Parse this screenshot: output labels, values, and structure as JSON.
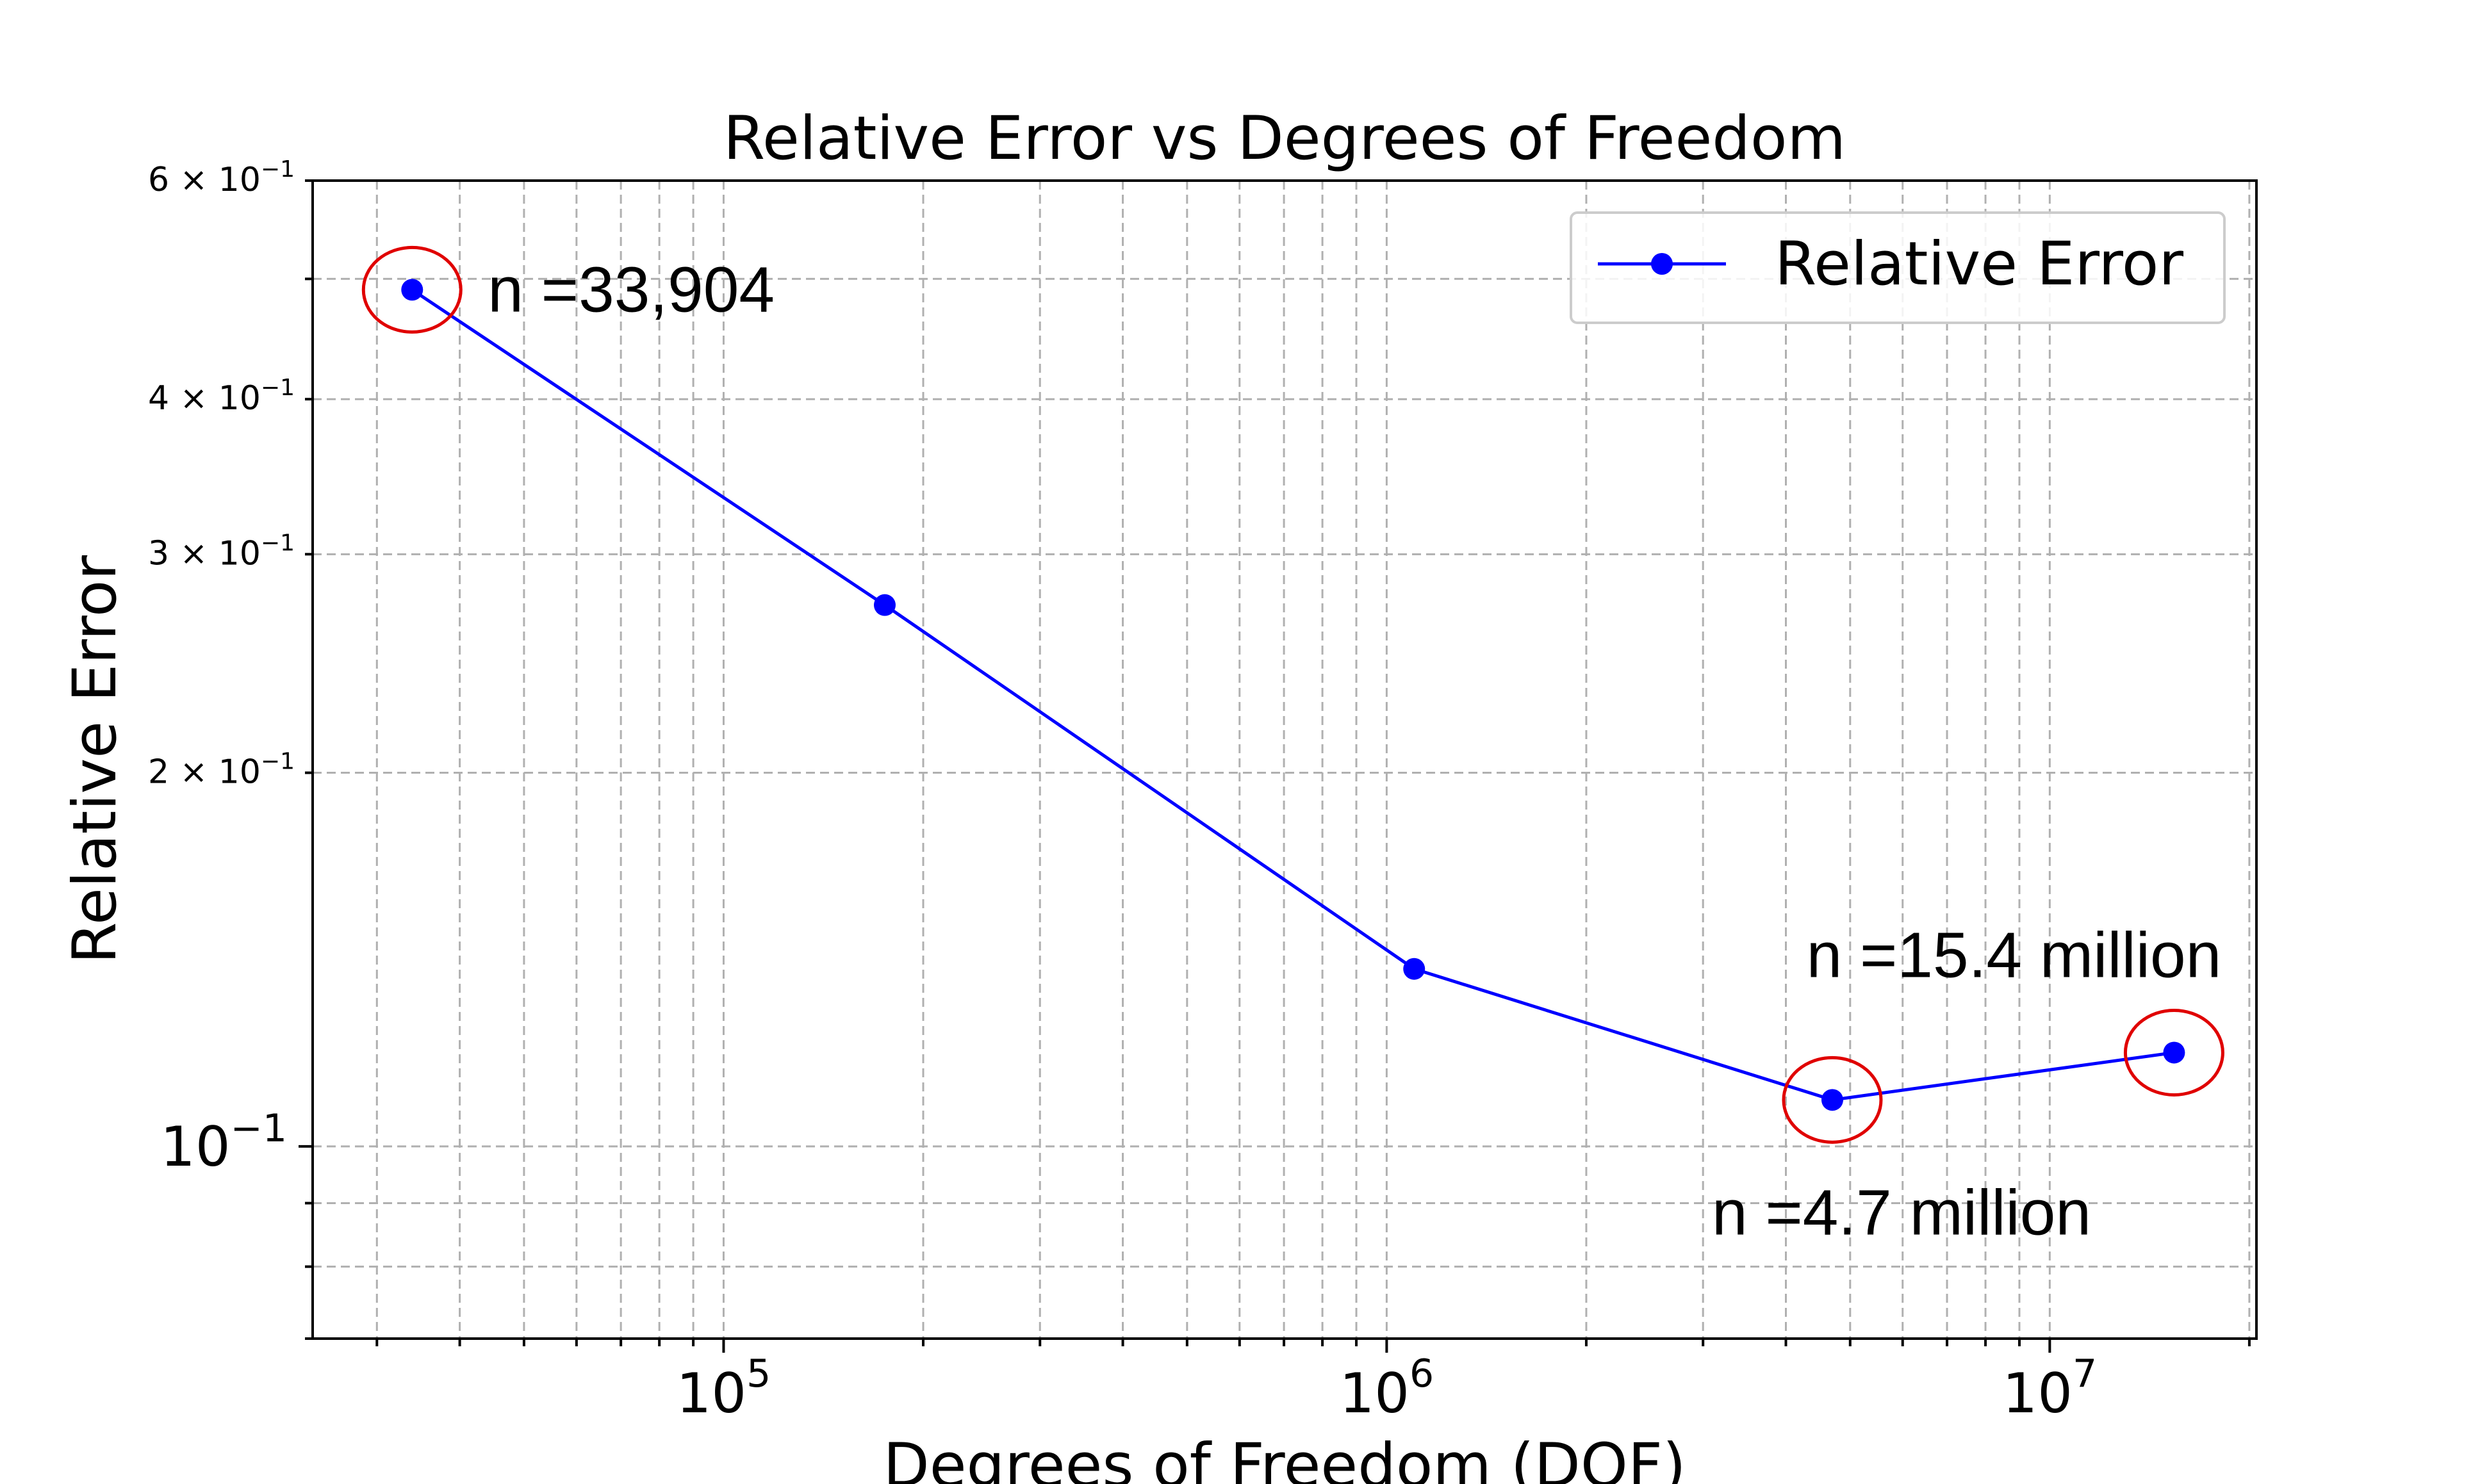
{
  "chart_data": {
    "type": "line",
    "title": "Relative Error vs Degrees of Freedom",
    "xlabel": "Degrees of Freedom (DOF)",
    "ylabel": "Relative Error",
    "xscale": "log",
    "yscale": "log",
    "xlim": [
      24000,
      20500000
    ],
    "ylim": [
      0.07,
      0.6
    ],
    "grid": true,
    "legend_position": "top-right",
    "x_ticks": [
      {
        "base": "10",
        "exp": "5",
        "value": 100000
      },
      {
        "base": "10",
        "exp": "6",
        "value": 1000000
      },
      {
        "base": "10",
        "exp": "7",
        "value": 10000000
      }
    ],
    "y_ticks": [
      {
        "mant": "6 × ",
        "base": "10",
        "exp": "−1",
        "value": 0.6,
        "minor": true
      },
      {
        "mant": "4 × ",
        "base": "10",
        "exp": "−1",
        "value": 0.4,
        "minor": true
      },
      {
        "mant": "3 × ",
        "base": "10",
        "exp": "−1",
        "value": 0.3,
        "minor": true
      },
      {
        "mant": "2 × ",
        "base": "10",
        "exp": "−1",
        "value": 0.2,
        "minor": true
      },
      {
        "mant": "",
        "base": "10",
        "exp": "−1",
        "value": 0.1,
        "minor": false
      }
    ],
    "series": [
      {
        "name": "Relative Error",
        "color": "#0000ff",
        "x": [
          33904,
          175000,
          1100000,
          4700000,
          15400000
        ],
        "y": [
          0.49,
          0.273,
          0.139,
          0.109,
          0.119
        ]
      }
    ],
    "annotations": [
      {
        "text": "n =33,904",
        "x": 33904,
        "y": 0.49,
        "highlight_color": "#e00000"
      },
      {
        "text": "n =4.7 million",
        "x": 4700000,
        "y": 0.109,
        "highlight_color": "#e00000"
      },
      {
        "text": "n =15.4 million",
        "x": 15400000,
        "y": 0.119,
        "highlight_color": "#e00000"
      }
    ]
  }
}
